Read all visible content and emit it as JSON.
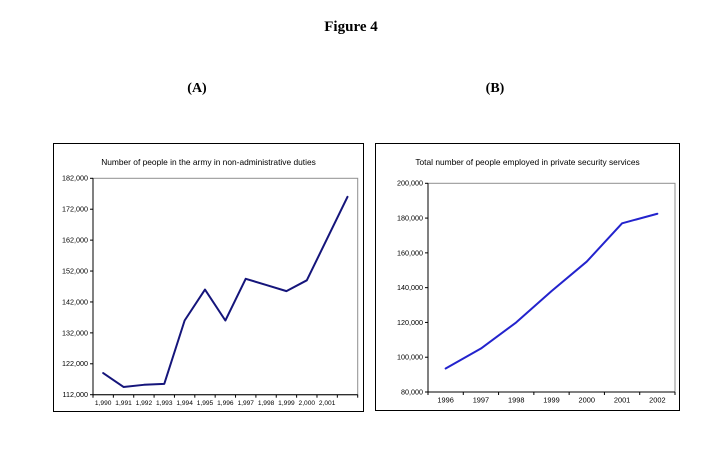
{
  "page": {
    "figure_label": "Figure 4",
    "panel_a_label": "(A)",
    "panel_b_label": "(B)",
    "background_color": "#ffffff",
    "text_color": "#000000"
  },
  "chart_data": [
    {
      "panel": "A",
      "type": "line",
      "title": "Number of people in the army in non-administrative duties",
      "x": [
        1990,
        1991,
        1992,
        1993,
        1994,
        1995,
        1996,
        1997,
        1998,
        1999,
        2000,
        2001,
        2002
      ],
      "x_tick_labels": [
        "1,990",
        "1,991",
        "1,992",
        "1,993",
        "1,994",
        "1,995",
        "1,996",
        "1,997",
        "1,998",
        "1,999",
        "2,000",
        "2,001"
      ],
      "values": [
        119000,
        114500,
        115200,
        115500,
        136000,
        146000,
        136000,
        149500,
        147500,
        145500,
        149000,
        162500,
        176000
      ],
      "ylim": [
        112000,
        182000
      ],
      "ytick_step": 10000,
      "ytick_labels": [
        "112,000",
        "122,000",
        "132,000",
        "142,000",
        "152,000",
        "162,000",
        "172,000",
        "182,000"
      ],
      "line_color": "#15157B",
      "axis_color": "#000000",
      "plot_border_color": "#8f8f8f",
      "grid": false,
      "legend": "none",
      "x_axis_note": "last data point has no x-axis label"
    },
    {
      "panel": "B",
      "type": "line",
      "title": "Total number of people employed in private security services",
      "x": [
        1996,
        1997,
        1998,
        1999,
        2000,
        2001,
        2002
      ],
      "x_tick_labels": [
        "1996",
        "1997",
        "1998",
        "1999",
        "2000",
        "2001",
        "2002"
      ],
      "values": [
        93500,
        105000,
        120000,
        138000,
        155000,
        177000,
        182500
      ],
      "ylim": [
        80000,
        200000
      ],
      "ytick_step": 20000,
      "ytick_labels": [
        "80,000",
        "100,000",
        "120,000",
        "140,000",
        "160,000",
        "180,000",
        "200,000"
      ],
      "line_color": "#2323CD",
      "axis_color": "#000000",
      "plot_border_color": "#8f8f8f",
      "grid": false,
      "legend": "none"
    }
  ]
}
